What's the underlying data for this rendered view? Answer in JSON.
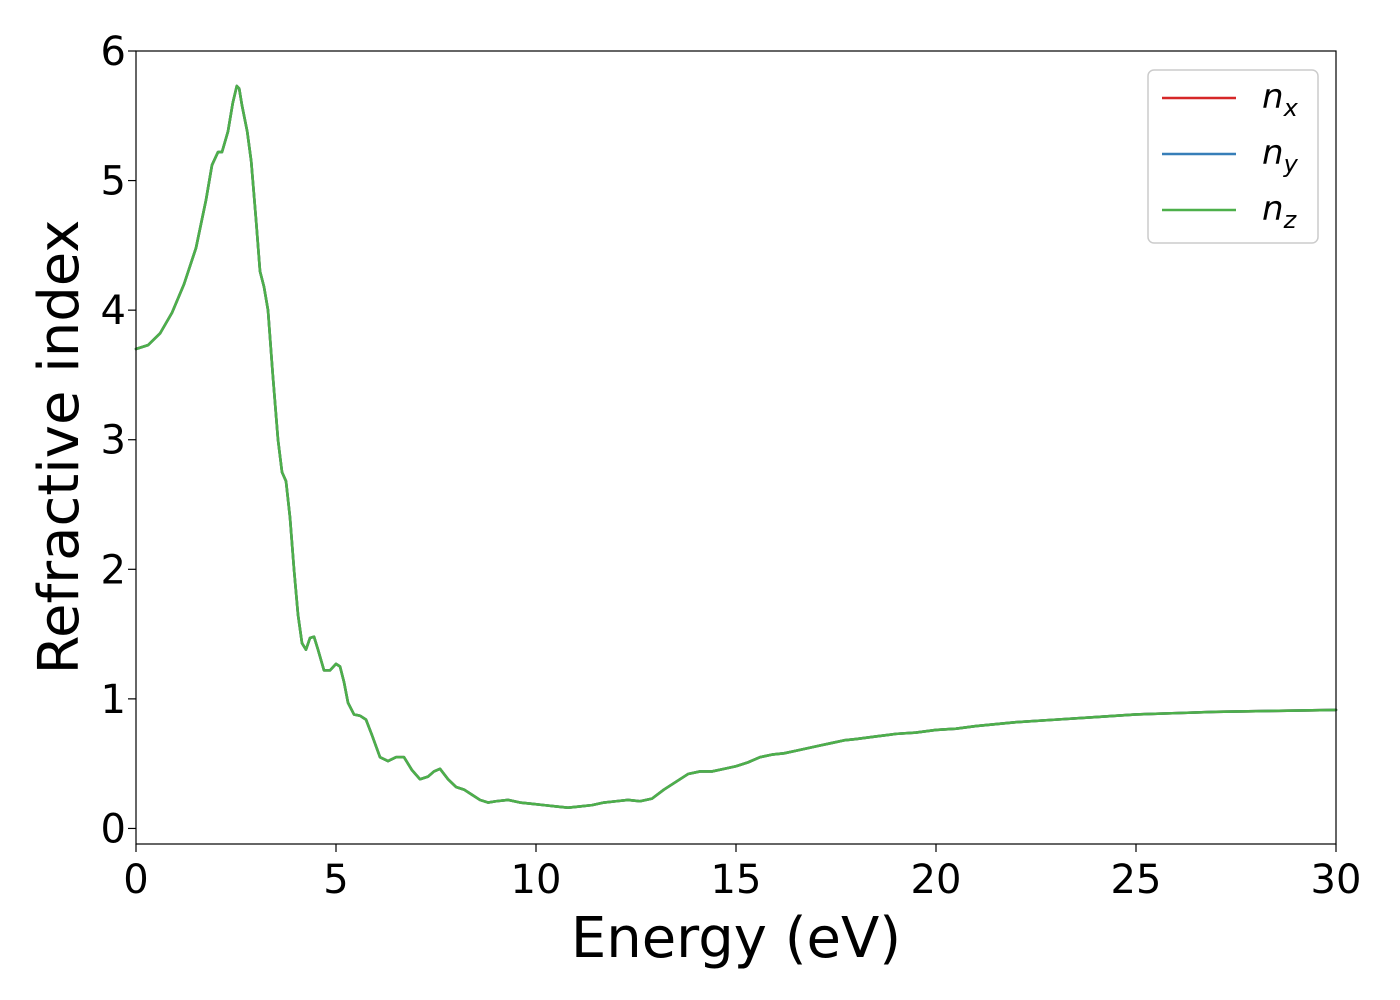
{
  "chart_data": {
    "type": "line",
    "xlabel": "Energy (eV)",
    "ylabel": "Refractive index",
    "xlim": [
      0,
      30
    ],
    "ylim": [
      -0.12,
      6
    ],
    "xticks": [
      0,
      5,
      10,
      15,
      20,
      25,
      30
    ],
    "yticks": [
      0,
      1,
      2,
      3,
      4,
      5,
      6
    ],
    "xtick_labels": [
      "0",
      "5",
      "10",
      "15",
      "20",
      "25",
      "30"
    ],
    "ytick_labels": [
      "0",
      "1",
      "2",
      "3",
      "4",
      "5",
      "6"
    ],
    "grid": false,
    "legend_position": "top-right",
    "x": [
      0,
      0.3,
      0.6,
      0.9,
      1.2,
      1.5,
      1.75,
      1.9,
      2.05,
      2.15,
      2.3,
      2.42,
      2.52,
      2.58,
      2.65,
      2.78,
      2.88,
      3.0,
      3.1,
      3.2,
      3.3,
      3.42,
      3.55,
      3.65,
      3.75,
      3.85,
      3.95,
      4.05,
      4.15,
      4.25,
      4.35,
      4.45,
      4.55,
      4.7,
      4.85,
      5.0,
      5.1,
      5.2,
      5.3,
      5.45,
      5.6,
      5.75,
      5.9,
      6.1,
      6.3,
      6.5,
      6.7,
      6.9,
      7.1,
      7.3,
      7.45,
      7.6,
      7.8,
      8.0,
      8.2,
      8.4,
      8.6,
      8.8,
      9.0,
      9.3,
      9.6,
      9.9,
      10.2,
      10.5,
      10.8,
      11.1,
      11.4,
      11.7,
      12.0,
      12.3,
      12.6,
      12.9,
      13.2,
      13.5,
      13.8,
      14.1,
      14.4,
      14.7,
      15.0,
      15.3,
      15.6,
      15.9,
      16.2,
      16.5,
      16.8,
      17.1,
      17.4,
      17.7,
      18.0,
      18.5,
      19.0,
      19.5,
      20.0,
      20.5,
      21.0,
      22.0,
      23.0,
      24.0,
      25.0,
      26.0,
      27.0,
      28.0,
      29.0,
      30.0
    ],
    "series": [
      {
        "name": "n_x",
        "color": "#d62728",
        "values": [
          3.7,
          3.73,
          3.82,
          3.98,
          4.2,
          4.48,
          4.85,
          5.12,
          5.22,
          5.22,
          5.38,
          5.6,
          5.73,
          5.71,
          5.58,
          5.38,
          5.15,
          4.7,
          4.3,
          4.18,
          4.0,
          3.5,
          3.0,
          2.75,
          2.68,
          2.4,
          2.0,
          1.65,
          1.43,
          1.38,
          1.47,
          1.48,
          1.38,
          1.22,
          1.22,
          1.27,
          1.25,
          1.13,
          0.97,
          0.88,
          0.87,
          0.84,
          0.72,
          0.55,
          0.52,
          0.55,
          0.55,
          0.45,
          0.38,
          0.4,
          0.44,
          0.46,
          0.38,
          0.32,
          0.3,
          0.26,
          0.22,
          0.2,
          0.21,
          0.22,
          0.2,
          0.19,
          0.18,
          0.17,
          0.16,
          0.17,
          0.18,
          0.2,
          0.21,
          0.22,
          0.21,
          0.23,
          0.3,
          0.36,
          0.42,
          0.44,
          0.44,
          0.46,
          0.48,
          0.51,
          0.55,
          0.57,
          0.58,
          0.6,
          0.62,
          0.64,
          0.66,
          0.68,
          0.69,
          0.71,
          0.73,
          0.74,
          0.76,
          0.77,
          0.79,
          0.82,
          0.84,
          0.86,
          0.88,
          0.89,
          0.9,
          0.905,
          0.91,
          0.915
        ]
      },
      {
        "name": "n_y",
        "color": "#377eb8",
        "values": [
          3.7,
          3.73,
          3.82,
          3.98,
          4.2,
          4.48,
          4.85,
          5.12,
          5.22,
          5.22,
          5.38,
          5.6,
          5.73,
          5.71,
          5.58,
          5.38,
          5.15,
          4.7,
          4.3,
          4.18,
          4.0,
          3.5,
          3.0,
          2.75,
          2.68,
          2.4,
          2.0,
          1.65,
          1.43,
          1.38,
          1.47,
          1.48,
          1.38,
          1.22,
          1.22,
          1.27,
          1.25,
          1.13,
          0.97,
          0.88,
          0.87,
          0.84,
          0.72,
          0.55,
          0.52,
          0.55,
          0.55,
          0.45,
          0.38,
          0.4,
          0.44,
          0.46,
          0.38,
          0.32,
          0.3,
          0.26,
          0.22,
          0.2,
          0.21,
          0.22,
          0.2,
          0.19,
          0.18,
          0.17,
          0.16,
          0.17,
          0.18,
          0.2,
          0.21,
          0.22,
          0.21,
          0.23,
          0.3,
          0.36,
          0.42,
          0.44,
          0.44,
          0.46,
          0.48,
          0.51,
          0.55,
          0.57,
          0.58,
          0.6,
          0.62,
          0.64,
          0.66,
          0.68,
          0.69,
          0.71,
          0.73,
          0.74,
          0.76,
          0.77,
          0.79,
          0.82,
          0.84,
          0.86,
          0.88,
          0.89,
          0.9,
          0.905,
          0.91,
          0.915
        ]
      },
      {
        "name": "n_z",
        "color": "#4daf4a",
        "values": [
          3.7,
          3.73,
          3.82,
          3.98,
          4.2,
          4.48,
          4.85,
          5.12,
          5.22,
          5.22,
          5.38,
          5.6,
          5.73,
          5.71,
          5.58,
          5.38,
          5.15,
          4.7,
          4.3,
          4.18,
          4.0,
          3.5,
          3.0,
          2.75,
          2.68,
          2.4,
          2.0,
          1.65,
          1.43,
          1.38,
          1.47,
          1.48,
          1.38,
          1.22,
          1.22,
          1.27,
          1.25,
          1.13,
          0.97,
          0.88,
          0.87,
          0.84,
          0.72,
          0.55,
          0.52,
          0.55,
          0.55,
          0.45,
          0.38,
          0.4,
          0.44,
          0.46,
          0.38,
          0.32,
          0.3,
          0.26,
          0.22,
          0.2,
          0.21,
          0.22,
          0.2,
          0.19,
          0.18,
          0.17,
          0.16,
          0.17,
          0.18,
          0.2,
          0.21,
          0.22,
          0.21,
          0.23,
          0.3,
          0.36,
          0.42,
          0.44,
          0.44,
          0.46,
          0.48,
          0.51,
          0.55,
          0.57,
          0.58,
          0.6,
          0.62,
          0.64,
          0.66,
          0.68,
          0.69,
          0.71,
          0.73,
          0.74,
          0.76,
          0.77,
          0.79,
          0.82,
          0.84,
          0.86,
          0.88,
          0.89,
          0.9,
          0.905,
          0.91,
          0.915
        ]
      }
    ],
    "legend": [
      {
        "main": "n",
        "sub": "x",
        "color": "#d62728"
      },
      {
        "main": "n",
        "sub": "y",
        "color": "#377eb8"
      },
      {
        "main": "n",
        "sub": "z",
        "color": "#4daf4a"
      }
    ]
  }
}
